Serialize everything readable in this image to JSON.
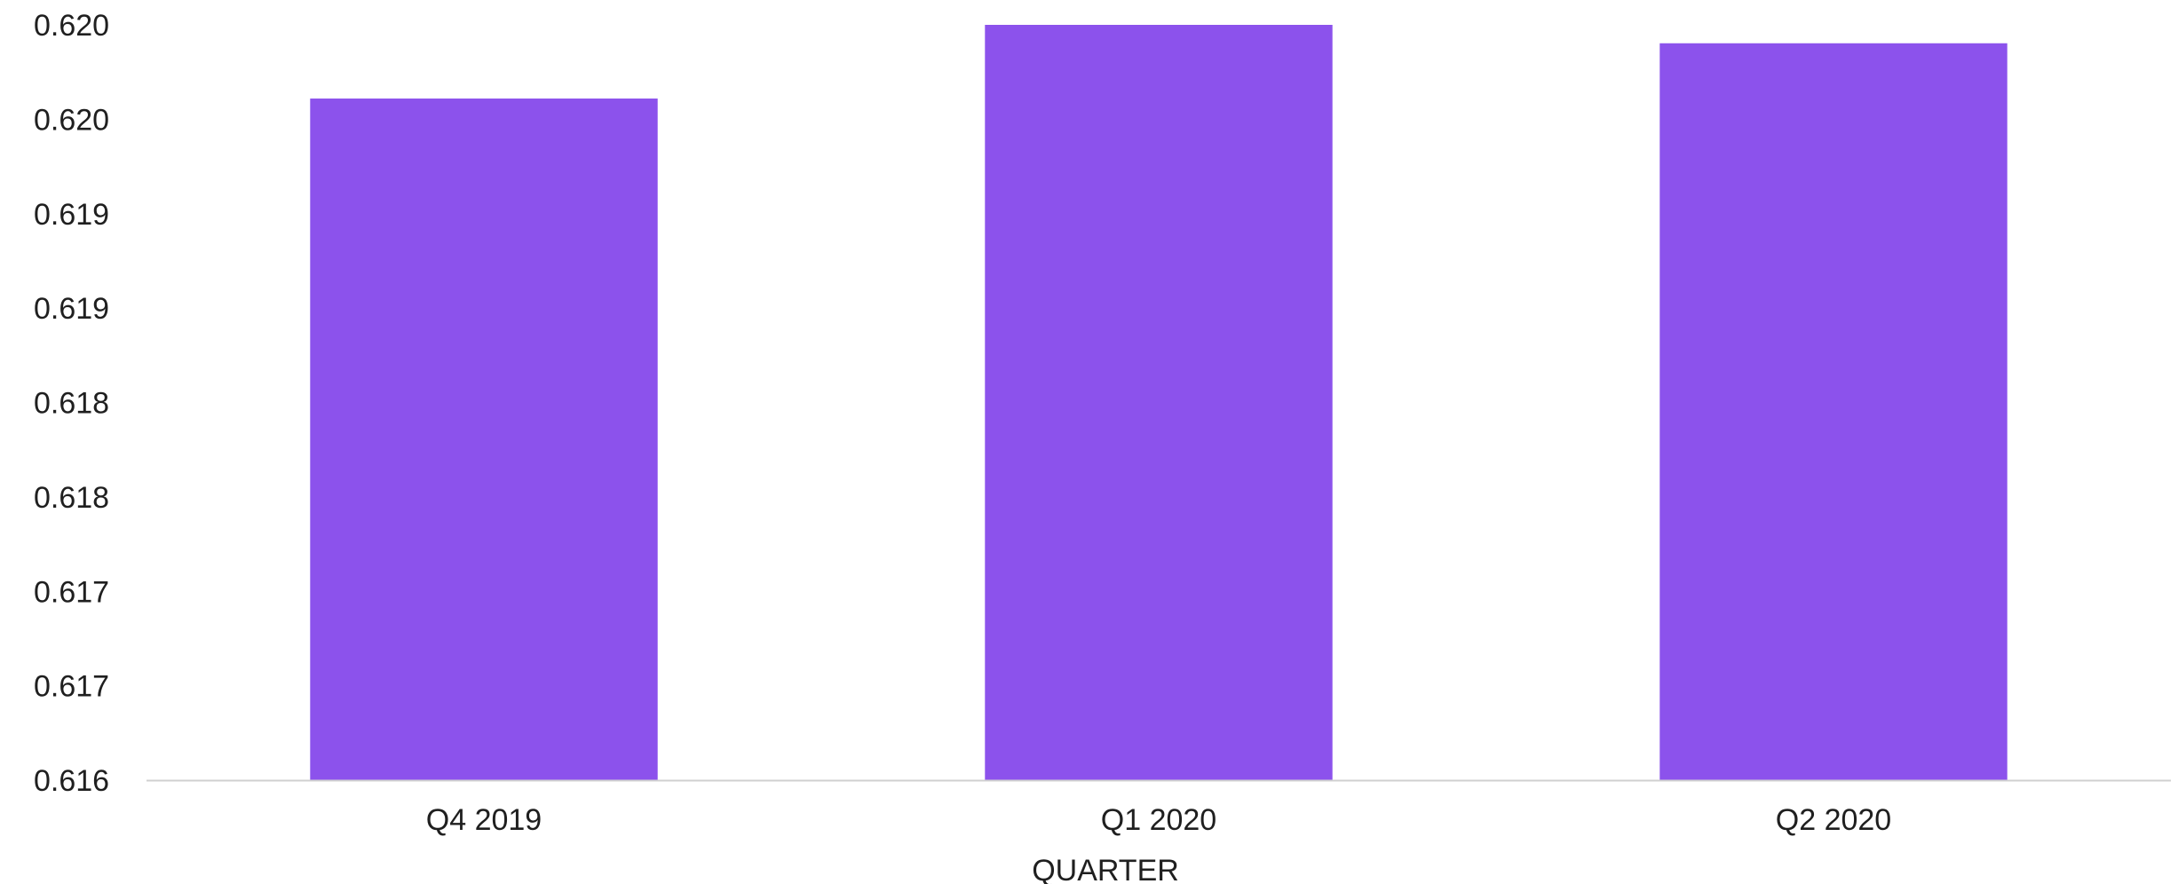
{
  "chart_data": {
    "type": "bar",
    "title": "",
    "xlabel": "QUARTER",
    "ylabel": "",
    "categories": [
      "Q4 2019",
      "Q1 2020",
      "Q2 2020"
    ],
    "series": [
      {
        "values": [
          0.6197,
          0.6201,
          0.62
        ]
      }
    ],
    "ylim": [
      0.616,
      0.6201
    ],
    "y_tick_labels": [
      "0.616",
      "0.617",
      "0.617",
      "0.618",
      "0.618",
      "0.619",
      "0.619",
      "0.620",
      "0.620"
    ],
    "grid": false,
    "legend": "none",
    "colors": {
      "bar": "#8c52ec",
      "baseline": "#d0d0d0",
      "text": "#1f1f1f"
    }
  }
}
